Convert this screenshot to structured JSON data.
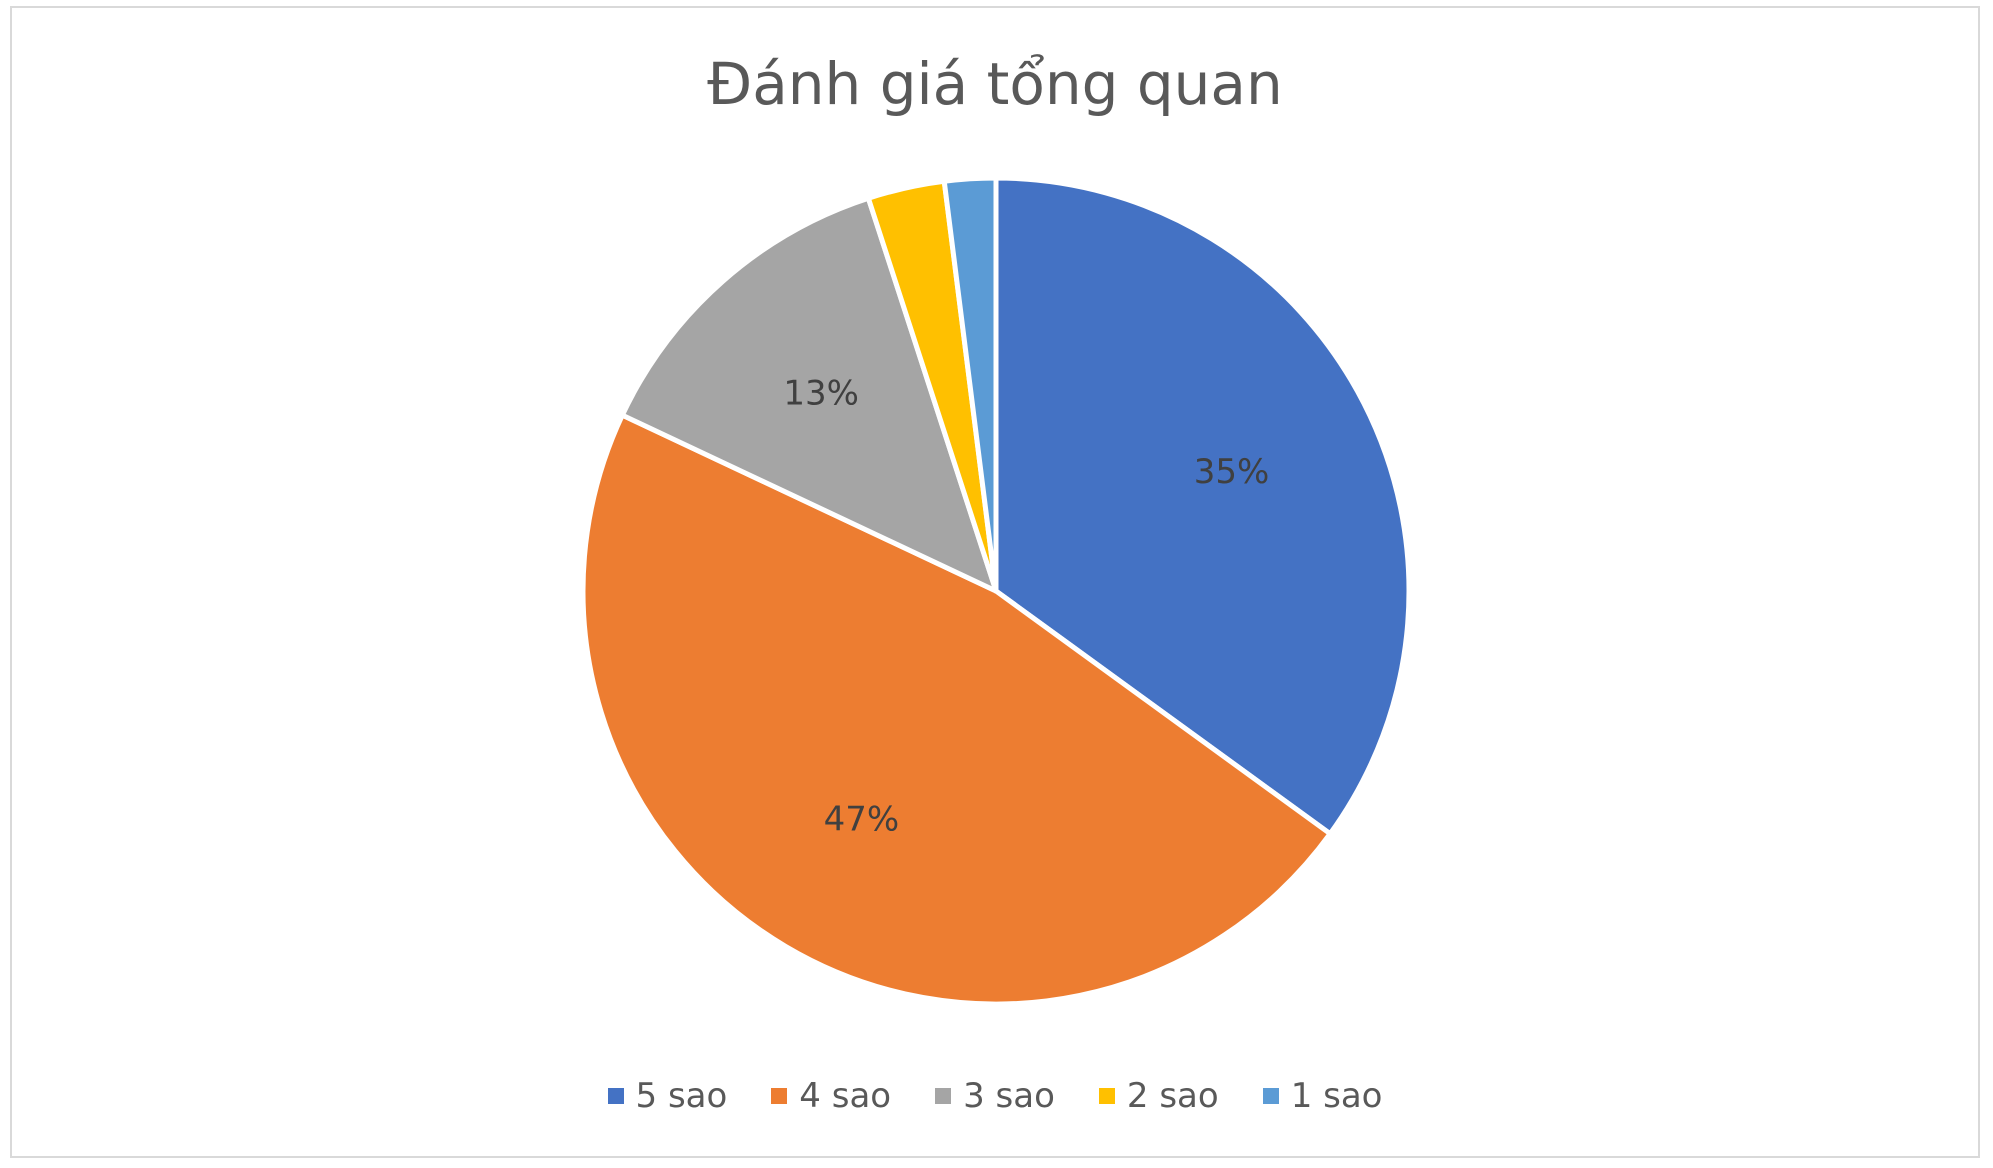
{
  "chart_data": {
    "type": "pie",
    "title": "Đánh giá tổng quan",
    "slices": [
      {
        "name": "5 sao",
        "value": 35,
        "label": "35%",
        "color": "#4472C4"
      },
      {
        "name": "4 sao",
        "value": 47,
        "label": "47%",
        "color": "#ED7D31"
      },
      {
        "name": "3 sao",
        "value": 13,
        "label": "13%",
        "color": "#A5A5A5"
      },
      {
        "name": "2 sao",
        "value": 3,
        "label": "",
        "color": "#FFC000"
      },
      {
        "name": "1 sao",
        "value": 2,
        "label": "",
        "color": "#5B9BD5"
      }
    ],
    "legend_position": "bottom"
  }
}
